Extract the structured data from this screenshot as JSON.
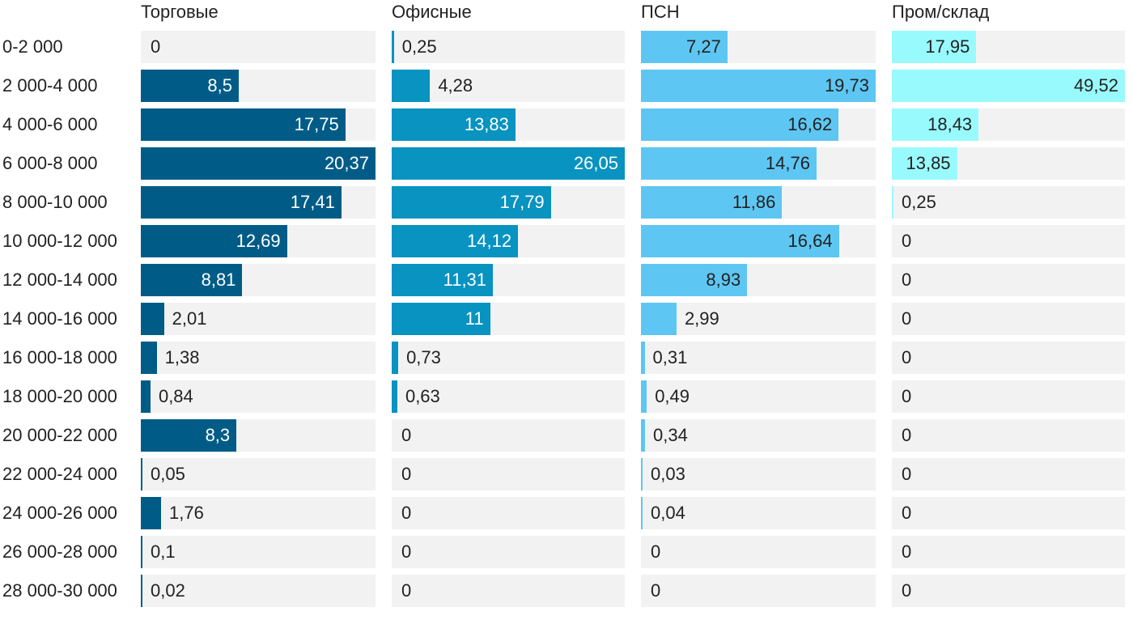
{
  "chart_data": {
    "type": "bar",
    "orientation": "horizontal",
    "layout": "small-multiples",
    "categories": [
      "0-2 000",
      "2 000-4 000",
      "4 000-6 000",
      "6 000-8 000",
      "8 000-10 000",
      "10 000-12 000",
      "12 000-14 000",
      "14 000-16 000",
      "16 000-18 000",
      "18 000-20 000",
      "20 000-22 000",
      "22 000-24 000",
      "24 000-26 000",
      "26 000-28 000",
      "28 000-30 000"
    ],
    "series": [
      {
        "name": "Торговые",
        "color": "#005c87",
        "label_color": "#ffffff",
        "values": [
          0,
          8.5,
          17.75,
          20.37,
          17.41,
          12.69,
          8.81,
          2.01,
          1.38,
          0.84,
          8.3,
          0.05,
          1.76,
          0.1,
          0.02
        ],
        "labels": [
          "0",
          "8,5",
          "17,75",
          "20,37",
          "17,41",
          "12,69",
          "8,81",
          "2,01",
          "1,38",
          "0,84",
          "8,3",
          "0,05",
          "1,76",
          "0,1",
          "0,02"
        ]
      },
      {
        "name": "Офисные",
        "color": "#0893c0",
        "label_color": "#ffffff",
        "values": [
          0.25,
          4.28,
          13.83,
          26.05,
          17.79,
          14.12,
          11.31,
          11,
          0.73,
          0.63,
          0,
          0,
          0,
          0,
          0
        ],
        "labels": [
          "0,25",
          "4,28",
          "13,83",
          "26,05",
          "17,79",
          "14,12",
          "11,31",
          "11",
          "0,73",
          "0,63",
          "0",
          "0",
          "0",
          "0",
          "0"
        ]
      },
      {
        "name": "ПСН",
        "color": "#5ec6f2",
        "label_color": "#222222",
        "values": [
          7.27,
          19.73,
          16.62,
          14.76,
          11.86,
          16.64,
          8.93,
          2.99,
          0.31,
          0.49,
          0.34,
          0.03,
          0.04,
          0,
          0
        ],
        "labels": [
          "7,27",
          "19,73",
          "16,62",
          "14,76",
          "11,86",
          "16,64",
          "8,93",
          "2,99",
          "0,31",
          "0,49",
          "0,34",
          "0,03",
          "0,04",
          "0",
          "0"
        ]
      },
      {
        "name": "Пром/склад",
        "color": "#99fafd",
        "label_color": "#222222",
        "values": [
          17.95,
          49.52,
          18.43,
          13.85,
          0.25,
          0,
          0,
          0,
          0,
          0,
          0,
          0,
          0,
          0,
          0
        ],
        "labels": [
          "17,95",
          "49,52",
          "18,43",
          "13,85",
          "0,25",
          "0",
          "0",
          "0",
          "0",
          "0",
          "0",
          "0",
          "0",
          "0",
          "0"
        ]
      }
    ],
    "track_color": "#f2f2f2",
    "grid": false,
    "legend": "none"
  }
}
